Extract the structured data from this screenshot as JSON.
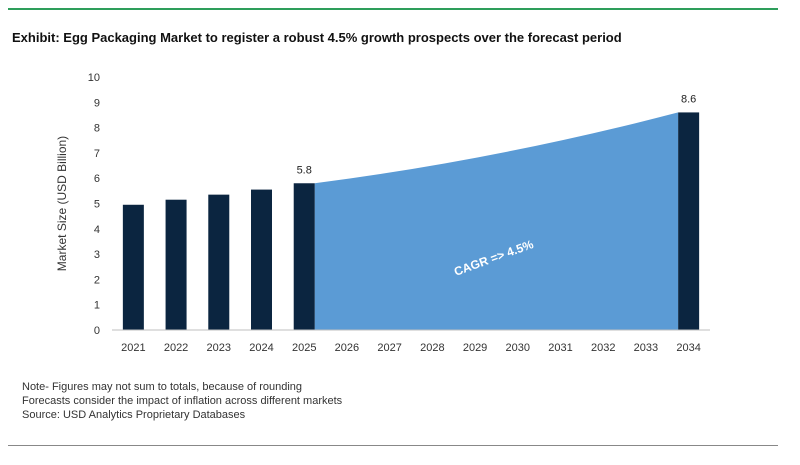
{
  "header": {
    "title": "Exhibit: Egg Packaging Market to register a robust 4.5% growth prospects over the forecast period"
  },
  "notes": [
    "Note- Figures may not sum to totals, because of rounding",
    "Forecasts consider the impact of inflation across different markets",
    "Source: USD Analytics Proprietary Databases"
  ],
  "colors": {
    "bar": "#0b2540",
    "area": "#5b9bd5",
    "rule": "#2e9e5b"
  },
  "chart_data": {
    "type": "bar",
    "title": "",
    "xlabel": "",
    "ylabel": "Market Size (USD Billion)",
    "ylim": [
      0,
      10
    ],
    "yticks": [
      0,
      1,
      2,
      3,
      4,
      5,
      6,
      7,
      8,
      9,
      10
    ],
    "categories": [
      "2021",
      "2022",
      "2023",
      "2024",
      "2025",
      "2026",
      "2027",
      "2028",
      "2029",
      "2030",
      "2031",
      "2032",
      "2033",
      "2034"
    ],
    "bars": [
      {
        "year": "2021",
        "value": 4.95
      },
      {
        "year": "2022",
        "value": 5.15
      },
      {
        "year": "2023",
        "value": 5.35
      },
      {
        "year": "2024",
        "value": 5.55
      },
      {
        "year": "2025",
        "value": 5.8
      },
      {
        "year": "2034",
        "value": 8.6
      }
    ],
    "data_labels": [
      {
        "year": "2025",
        "text": "5.8"
      },
      {
        "year": "2034",
        "text": "8.6"
      }
    ],
    "area": {
      "start_year": "2025",
      "end_year": "2034",
      "start_value": 5.8,
      "end_value": 8.6,
      "label": "CAGR => 4.5%"
    },
    "grid": false
  }
}
